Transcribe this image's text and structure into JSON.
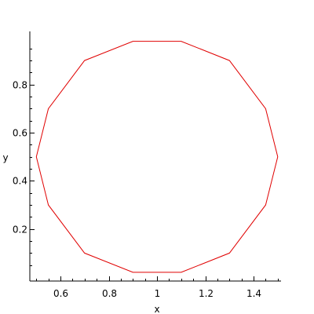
{
  "chart_data": {
    "type": "line",
    "xlabel": "x",
    "ylabel": "y",
    "xlim": [
      0.48,
      1.52
    ],
    "ylim": [
      0.0,
      0.985
    ],
    "x_ticks": [
      0.6,
      0.8,
      1,
      1.2,
      1.4
    ],
    "x_tick_labels": [
      "0.6",
      "0.8",
      "1",
      "1.2",
      "1.4"
    ],
    "y_ticks": [
      0.2,
      0.4,
      0.6,
      0.8
    ],
    "y_tick_labels": [
      "0.2",
      "0.4",
      "0.6",
      "0.8"
    ],
    "grid": false,
    "series": [
      {
        "color": "#e00000",
        "closed": true,
        "points": [
          [
            1.5,
            0.5
          ],
          [
            1.45,
            0.3
          ],
          [
            1.3,
            0.1
          ],
          [
            1.1,
            0.02
          ],
          [
            0.9,
            0.02
          ],
          [
            0.7,
            0.1
          ],
          [
            0.55,
            0.3
          ],
          [
            0.5,
            0.5
          ],
          [
            0.55,
            0.7
          ],
          [
            0.7,
            0.9
          ],
          [
            0.9,
            0.98
          ],
          [
            1.1,
            0.98
          ],
          [
            1.3,
            0.9
          ],
          [
            1.45,
            0.7
          ]
        ]
      }
    ]
  }
}
